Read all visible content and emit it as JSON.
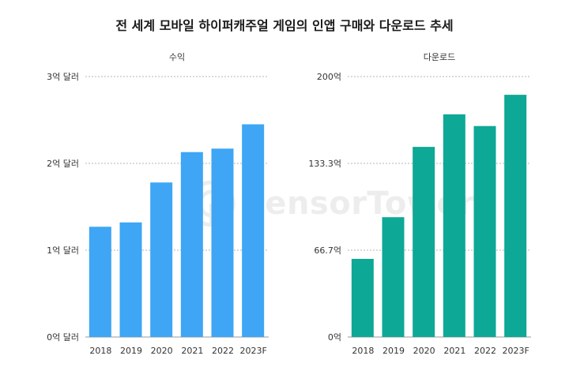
{
  "title": "전 세계 모바일 하이퍼캐주얼 게임의 인앱 구매와 다운로드 추세",
  "watermark": "SensorTower",
  "chart_data": [
    {
      "type": "bar",
      "title": "수익",
      "categories": [
        "2018",
        "2019",
        "2020",
        "2021",
        "2022",
        "2023F"
      ],
      "values": [
        1.27,
        1.32,
        1.78,
        2.13,
        2.17,
        2.45
      ],
      "ylim": [
        0,
        3
      ],
      "yticks": [
        0,
        1,
        2,
        3
      ],
      "ytick_labels": [
        "0억 달러",
        "1억 달러",
        "2억 달러",
        "3억 달러"
      ],
      "grid": true,
      "color": "#3ea6f4"
    },
    {
      "type": "bar",
      "title": "다운로드",
      "categories": [
        "2018",
        "2019",
        "2020",
        "2021",
        "2022",
        "2023F"
      ],
      "values": [
        60,
        92,
        146,
        171,
        162,
        186
      ],
      "ylim": [
        0,
        200
      ],
      "yticks": [
        0,
        66.7,
        133.3,
        200
      ],
      "ytick_labels": [
        "0억",
        "66.7억",
        "133.3억",
        "200억"
      ],
      "grid": true,
      "color": "#0ea896"
    }
  ]
}
